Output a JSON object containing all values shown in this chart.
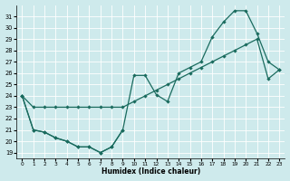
{
  "xlabel": "Humidex (Indice chaleur)",
  "background_color": "#ceeaec",
  "line_color": "#1a6b5e",
  "xlim": [
    -0.5,
    23.5
  ],
  "ylim": [
    18.5,
    32.0
  ],
  "xticks": [
    0,
    1,
    2,
    3,
    4,
    5,
    6,
    7,
    8,
    9,
    10,
    11,
    12,
    13,
    14,
    15,
    16,
    17,
    18,
    19,
    20,
    21,
    22,
    23
  ],
  "yticks": [
    19,
    20,
    21,
    22,
    23,
    24,
    25,
    26,
    27,
    28,
    29,
    30,
    31
  ],
  "series1_x": [
    0,
    1,
    2,
    3,
    4,
    5,
    6,
    7,
    8,
    9,
    10,
    11,
    12,
    13,
    14,
    15,
    16,
    17,
    18,
    19,
    20,
    21,
    22,
    23
  ],
  "series1_y": [
    24.0,
    21.0,
    20.8,
    20.3,
    20.0,
    19.5,
    19.5,
    19.0,
    19.5,
    21.0,
    25.8,
    25.8,
    24.1,
    23.5,
    26.0,
    26.5,
    27.0,
    29.2,
    30.5,
    31.5,
    31.5,
    29.5,
    27.0,
    26.3
  ],
  "series2_x": [
    0,
    1,
    2,
    3,
    4,
    5,
    6,
    7,
    8,
    9,
    10,
    11,
    12,
    13,
    14,
    15,
    16,
    17,
    18,
    19,
    20,
    21,
    22,
    23
  ],
  "series2_y": [
    24.0,
    23.0,
    23.0,
    23.0,
    23.0,
    23.0,
    23.0,
    23.0,
    23.0,
    23.0,
    23.5,
    24.0,
    24.5,
    25.0,
    25.5,
    26.0,
    26.5,
    27.0,
    27.5,
    28.0,
    28.5,
    29.0,
    25.5,
    26.3
  ],
  "series3_x": [
    0,
    1,
    2,
    3,
    4,
    5,
    6,
    7,
    8,
    9
  ],
  "series3_y": [
    24.0,
    21.0,
    20.8,
    20.3,
    20.0,
    19.5,
    19.5,
    19.0,
    19.5,
    21.0
  ]
}
